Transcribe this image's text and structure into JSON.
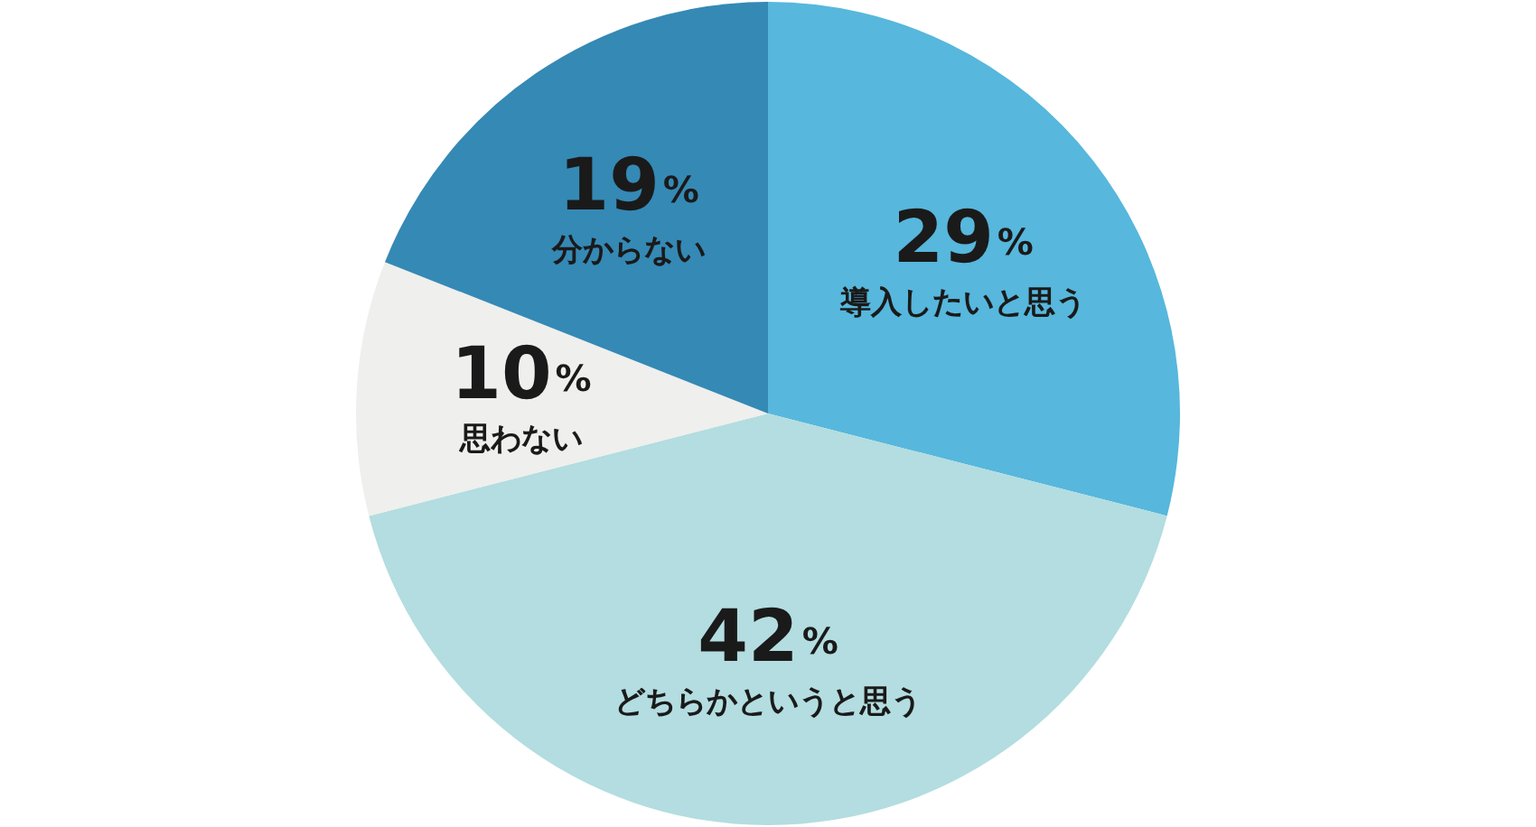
{
  "chart_data": {
    "type": "pie",
    "categories": [
      "導入したいと思う",
      "どちらかというと思う",
      "思わない",
      "分からない"
    ],
    "values": [
      29,
      42,
      10,
      19
    ],
    "colors": [
      "#57b7dc",
      "#b3dde0",
      "#efefed",
      "#3589b5"
    ],
    "value_labels": [
      "29%",
      "42%",
      "10%",
      "19%"
    ],
    "legend": false
  }
}
